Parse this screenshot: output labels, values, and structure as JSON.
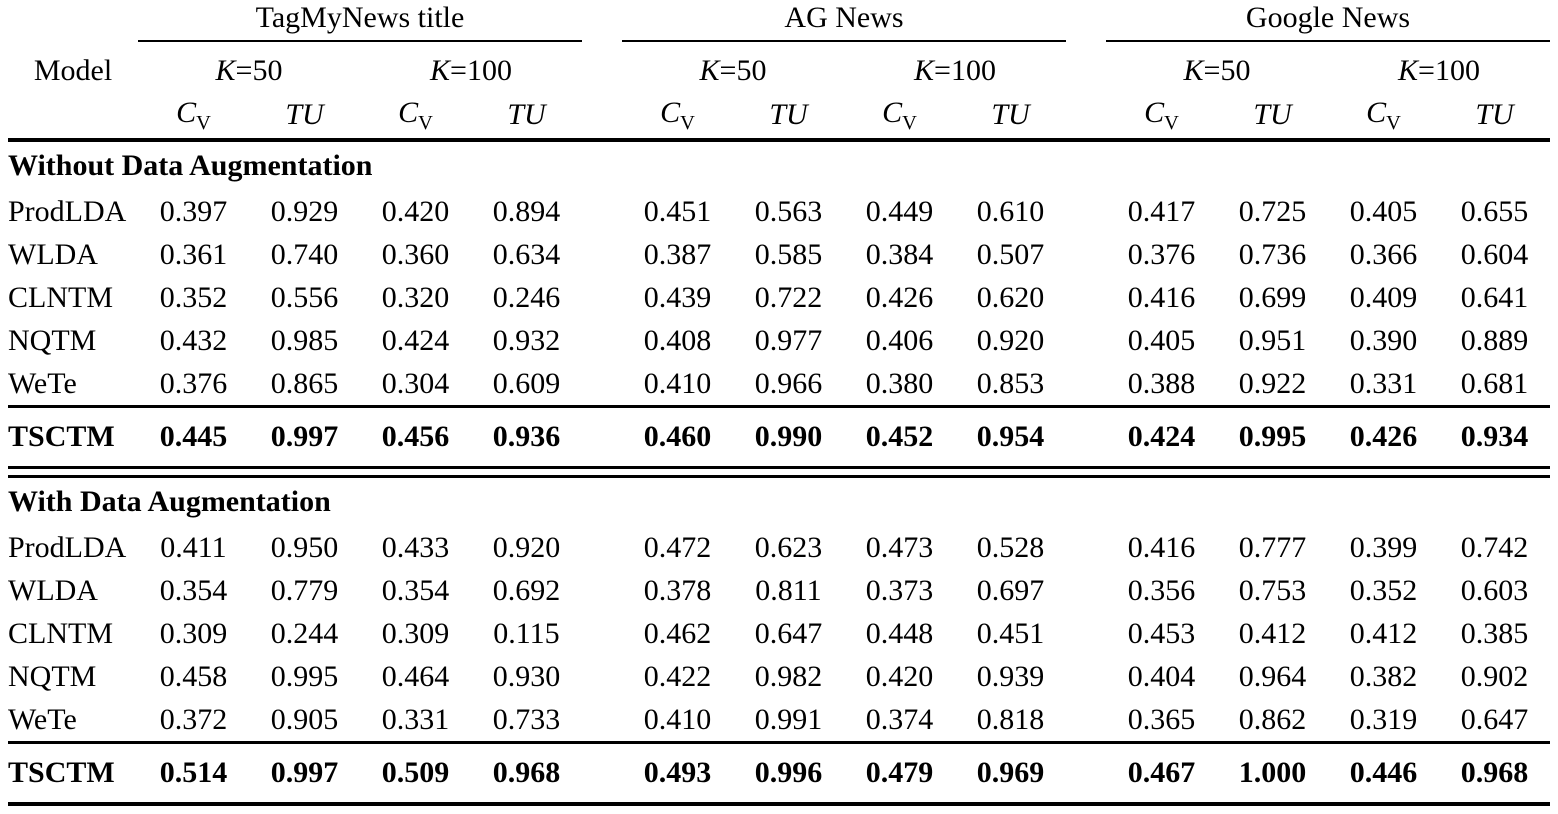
{
  "table": {
    "groups": [
      {
        "label": "TagMyNews title"
      },
      {
        "label": "AG News"
      },
      {
        "label": "Google News"
      }
    ],
    "model_header": "Model",
    "k_symbol": "K",
    "k_values": [
      "=50",
      "=100"
    ],
    "metrics": [
      {
        "main": "C",
        "sub": "V"
      },
      {
        "main": "TU",
        "sub": ""
      }
    ],
    "sections": [
      {
        "title": "Without Data Augmentation",
        "rows": [
          {
            "model": "ProdLDA",
            "bold": false,
            "values": [
              "0.397",
              "0.929",
              "0.420",
              "0.894",
              "0.451",
              "0.563",
              "0.449",
              "0.610",
              "0.417",
              "0.725",
              "0.405",
              "0.655"
            ]
          },
          {
            "model": "WLDA",
            "bold": false,
            "values": [
              "0.361",
              "0.740",
              "0.360",
              "0.634",
              "0.387",
              "0.585",
              "0.384",
              "0.507",
              "0.376",
              "0.736",
              "0.366",
              "0.604"
            ]
          },
          {
            "model": "CLNTM",
            "bold": false,
            "values": [
              "0.352",
              "0.556",
              "0.320",
              "0.246",
              "0.439",
              "0.722",
              "0.426",
              "0.620",
              "0.416",
              "0.699",
              "0.409",
              "0.641"
            ]
          },
          {
            "model": "NQTM",
            "bold": false,
            "values": [
              "0.432",
              "0.985",
              "0.424",
              "0.932",
              "0.408",
              "0.977",
              "0.406",
              "0.920",
              "0.405",
              "0.951",
              "0.390",
              "0.889"
            ]
          },
          {
            "model": "WeTe",
            "bold": false,
            "values": [
              "0.376",
              "0.865",
              "0.304",
              "0.609",
              "0.410",
              "0.966",
              "0.380",
              "0.853",
              "0.388",
              "0.922",
              "0.331",
              "0.681"
            ]
          },
          {
            "model": "TSCTM",
            "bold": true,
            "values": [
              "0.445",
              "0.997",
              "0.456",
              "0.936",
              "0.460",
              "0.990",
              "0.452",
              "0.954",
              "0.424",
              "0.995",
              "0.426",
              "0.934"
            ]
          }
        ]
      },
      {
        "title": "With Data Augmentation",
        "rows": [
          {
            "model": "ProdLDA",
            "bold": false,
            "values": [
              "0.411",
              "0.950",
              "0.433",
              "0.920",
              "0.472",
              "0.623",
              "0.473",
              "0.528",
              "0.416",
              "0.777",
              "0.399",
              "0.742"
            ]
          },
          {
            "model": "WLDA",
            "bold": false,
            "values": [
              "0.354",
              "0.779",
              "0.354",
              "0.692",
              "0.378",
              "0.811",
              "0.373",
              "0.697",
              "0.356",
              "0.753",
              "0.352",
              "0.603"
            ]
          },
          {
            "model": "CLNTM",
            "bold": false,
            "values": [
              "0.309",
              "0.244",
              "0.309",
              "0.115",
              "0.462",
              "0.647",
              "0.448",
              "0.451",
              "0.453",
              "0.412",
              "0.412",
              "0.385"
            ]
          },
          {
            "model": "NQTM",
            "bold": false,
            "values": [
              "0.458",
              "0.995",
              "0.464",
              "0.930",
              "0.422",
              "0.982",
              "0.420",
              "0.939",
              "0.404",
              "0.964",
              "0.382",
              "0.902"
            ]
          },
          {
            "model": "WeTe",
            "bold": false,
            "values": [
              "0.372",
              "0.905",
              "0.331",
              "0.733",
              "0.410",
              "0.991",
              "0.374",
              "0.818",
              "0.365",
              "0.862",
              "0.319",
              "0.647"
            ]
          },
          {
            "model": "TSCTM",
            "bold": true,
            "values": [
              "0.514",
              "0.997",
              "0.509",
              "0.968",
              "0.493",
              "0.996",
              "0.479",
              "0.969",
              "0.467",
              "1.000",
              "0.446",
              "0.968"
            ]
          }
        ]
      }
    ]
  }
}
